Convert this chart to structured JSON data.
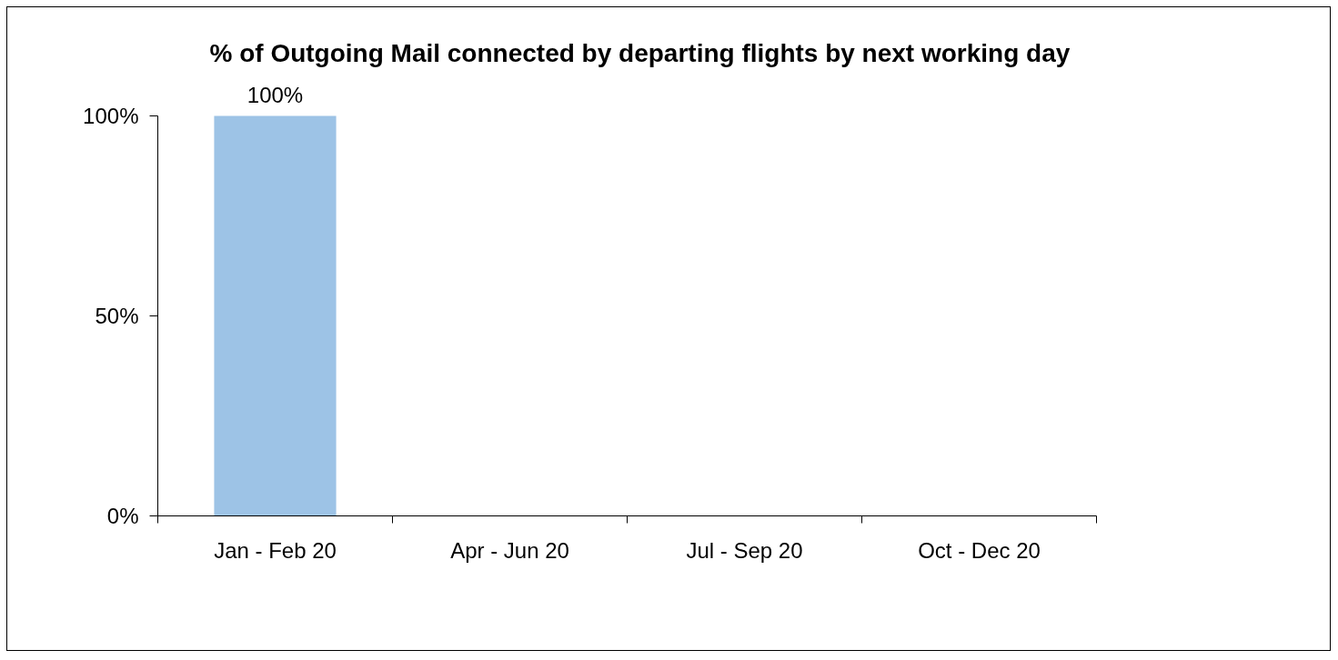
{
  "chart_data": {
    "type": "bar",
    "title": "% of Outgoing Mail connected by departing flights by next working day",
    "categories": [
      "Jan - Feb 20",
      "Apr - Jun 20",
      "Jul - Sep 20",
      "Oct - Dec 20"
    ],
    "values": [
      100,
      null,
      null,
      null
    ],
    "color": "#9dc3e6",
    "value_labels": [
      "100%",
      null,
      null,
      null
    ],
    "ylim": [
      0,
      100
    ],
    "yticks": [
      {
        "value": 0,
        "label": "0%"
      },
      {
        "value": 50,
        "label": "50%"
      },
      {
        "value": 100,
        "label": "100%"
      }
    ],
    "grid": false
  }
}
